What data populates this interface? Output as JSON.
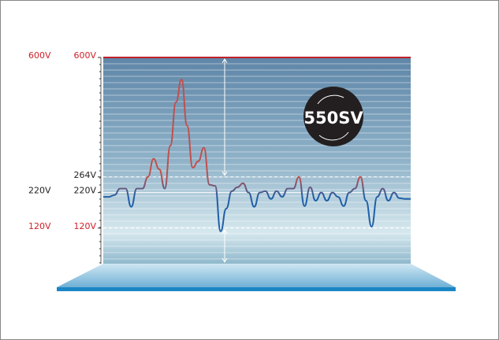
{
  "chart_data": {
    "type": "line",
    "badge": "550SV",
    "ylim": [
      20,
      600
    ],
    "yticks": [
      {
        "value": 600,
        "label": "600V"
      },
      {
        "value": 264,
        "label": "264V"
      },
      {
        "value": 220,
        "label": "220V"
      },
      {
        "value": 120,
        "label": "120V"
      }
    ],
    "outer_labels": [
      {
        "value": 600,
        "label": "600V",
        "color": "#d0202a"
      },
      {
        "value": 220,
        "label": "220V",
        "color": "#222222"
      },
      {
        "value": 120,
        "label": "120V",
        "color": "#d0202a"
      }
    ],
    "series": [
      {
        "color_high": "#c0504d",
        "color_low": "#1f5fa8",
        "values": [
          208,
          208,
          213,
          231,
          231,
          180,
          231,
          231,
          264,
          315,
          286,
          231,
          352,
          474,
          538,
          408,
          290,
          308,
          346,
          242,
          239,
          111,
          175,
          224,
          235,
          246,
          220,
          180,
          220,
          224,
          202,
          224,
          208,
          231,
          231,
          264,
          182,
          235,
          197,
          220,
          197,
          220,
          208,
          182,
          220,
          231,
          264,
          197,
          124,
          208,
          231,
          197,
          220,
          204,
          202,
          202
        ]
      }
    ]
  }
}
